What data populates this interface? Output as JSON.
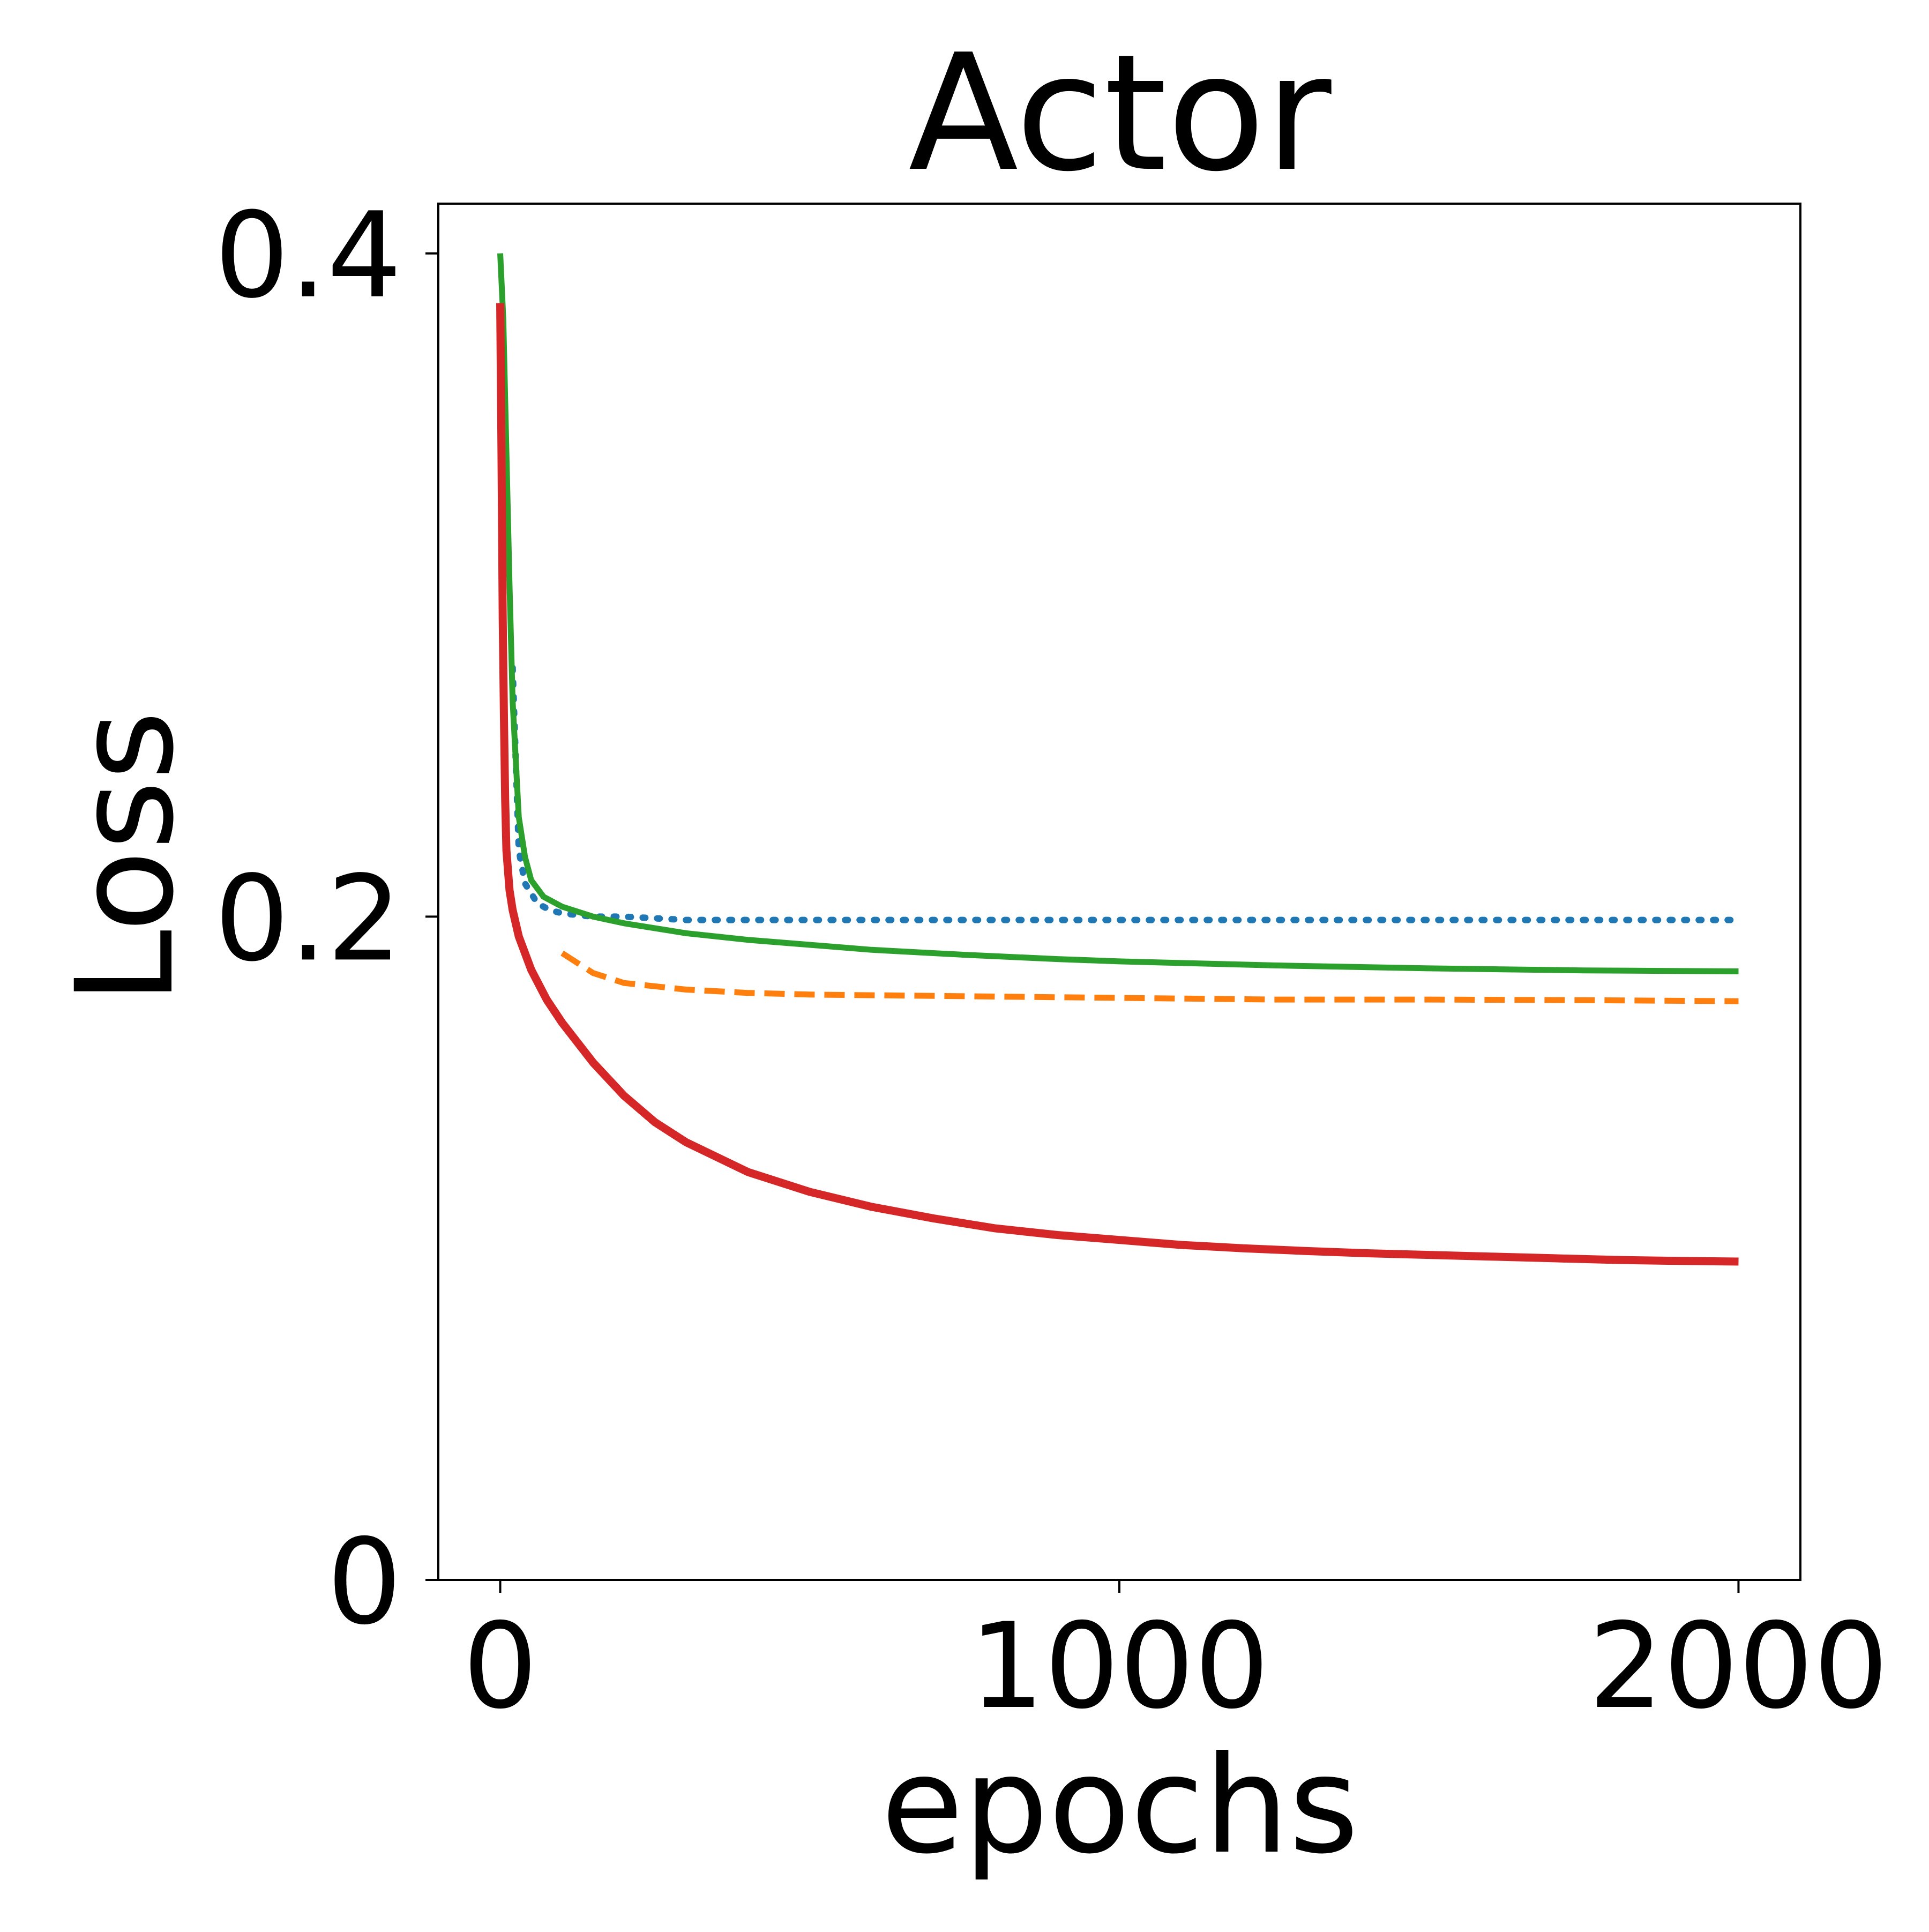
{
  "chart_data": {
    "type": "line",
    "title": "Actor",
    "xlabel": "epochs",
    "ylabel": "Loss",
    "xlim": [
      -100,
      2100
    ],
    "ylim": [
      0,
      0.415
    ],
    "xticks": [
      0,
      1000,
      2000
    ],
    "xtick_labels": [
      "0",
      "1000",
      "2000"
    ],
    "yticks": [
      0,
      0.2,
      0.4
    ],
    "ytick_labels": [
      "0",
      "0.2",
      "0.4"
    ],
    "grid": false,
    "legend": false,
    "series": [
      {
        "color": "#1f77b4",
        "dash": "dotted",
        "x": [
          20,
          30,
          40,
          60,
          80,
          100,
          150,
          200,
          300,
          500,
          750,
          1000,
          1250,
          1500,
          1750,
          2000
        ],
        "y": [
          0.275,
          0.22,
          0.21,
          0.204,
          0.202,
          0.201,
          0.2,
          0.2,
          0.199,
          0.199,
          0.199,
          0.199,
          0.199,
          0.199,
          0.199,
          0.199
        ]
      },
      {
        "color": "#ff7f0e",
        "dash": "dashed",
        "x": [
          100,
          150,
          200,
          300,
          400,
          500,
          750,
          1000,
          1250,
          1500,
          1750,
          2000
        ],
        "y": [
          0.189,
          0.183,
          0.18,
          0.178,
          0.177,
          0.1765,
          0.176,
          0.1755,
          0.175,
          0.175,
          0.1748,
          0.1745
        ]
      },
      {
        "color": "#2ca02c",
        "dash": "solid",
        "x": [
          0,
          5,
          10,
          15,
          20,
          30,
          40,
          50,
          70,
          100,
          150,
          200,
          300,
          400,
          500,
          600,
          750,
          900,
          1000,
          1250,
          1500,
          1750,
          2000
        ],
        "y": [
          0.4,
          0.38,
          0.34,
          0.3,
          0.265,
          0.23,
          0.218,
          0.211,
          0.206,
          0.203,
          0.2,
          0.198,
          0.195,
          0.193,
          0.1915,
          0.19,
          0.1885,
          0.1872,
          0.1865,
          0.1853,
          0.1844,
          0.1838,
          0.1835
        ]
      },
      {
        "color": "#d62728",
        "dash": "solid",
        "x": [
          0,
          2,
          4,
          6,
          8,
          10,
          15,
          20,
          30,
          50,
          75,
          100,
          150,
          200,
          250,
          300,
          400,
          500,
          600,
          700,
          800,
          900,
          1000,
          1100,
          1200,
          1300,
          1400,
          1500,
          1600,
          1700,
          1800,
          1900,
          2000
        ],
        "y": [
          0.385,
          0.34,
          0.29,
          0.26,
          0.235,
          0.22,
          0.208,
          0.202,
          0.194,
          0.184,
          0.175,
          0.168,
          0.156,
          0.146,
          0.138,
          0.132,
          0.123,
          0.117,
          0.1125,
          0.109,
          0.106,
          0.104,
          0.1025,
          0.101,
          0.1,
          0.0992,
          0.0985,
          0.098,
          0.0975,
          0.097,
          0.0965,
          0.0962,
          0.096
        ]
      }
    ]
  }
}
